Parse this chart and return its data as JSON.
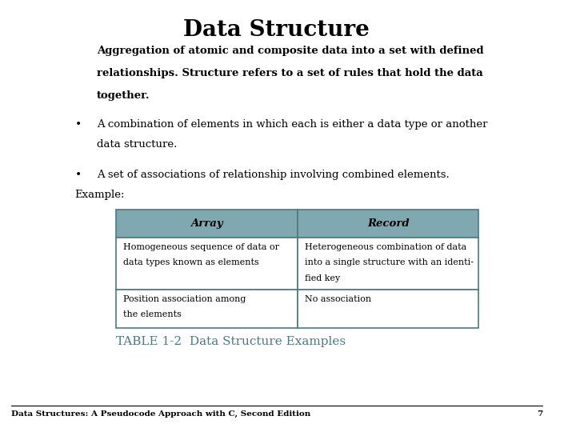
{
  "title": "Data Structure",
  "subtitle_lines": [
    "Aggregation of atomic and composite data into a set with defined",
    "relationships. Structure refers to a set of rules that hold the data",
    "together."
  ],
  "bullet1_lines": [
    "A combination of elements in which each is either a data type or another",
    "data structure."
  ],
  "bullet2": "A set of associations of relationship involving combined elements.",
  "example_label": "Example:",
  "table_caption": "TABLE 1-2  Data Structure Examples",
  "footer": "Data Structures: A Pseudocode Approach with C, Second Edition",
  "footer_page": "7",
  "table_header": [
    "Array",
    "Record"
  ],
  "row1_col0_lines": [
    "Homogeneous sequence of data or",
    "data types known as elements"
  ],
  "row1_col1_lines": [
    "Heterogeneous combination of data",
    "into a single structure with an identi-",
    "fied key"
  ],
  "row2_col0_lines": [
    "Position association among",
    "the elements"
  ],
  "row2_col1_lines": [
    "No association"
  ],
  "header_bg": "#7fa8b0",
  "row_bg": "#ffffff",
  "table_border": "#4a7a85",
  "background": "#ffffff",
  "title_color": "#000000",
  "subtitle_color": "#000000",
  "bullet_color": "#000000",
  "table_caption_color": "#4a7a85",
  "footer_color": "#000000"
}
